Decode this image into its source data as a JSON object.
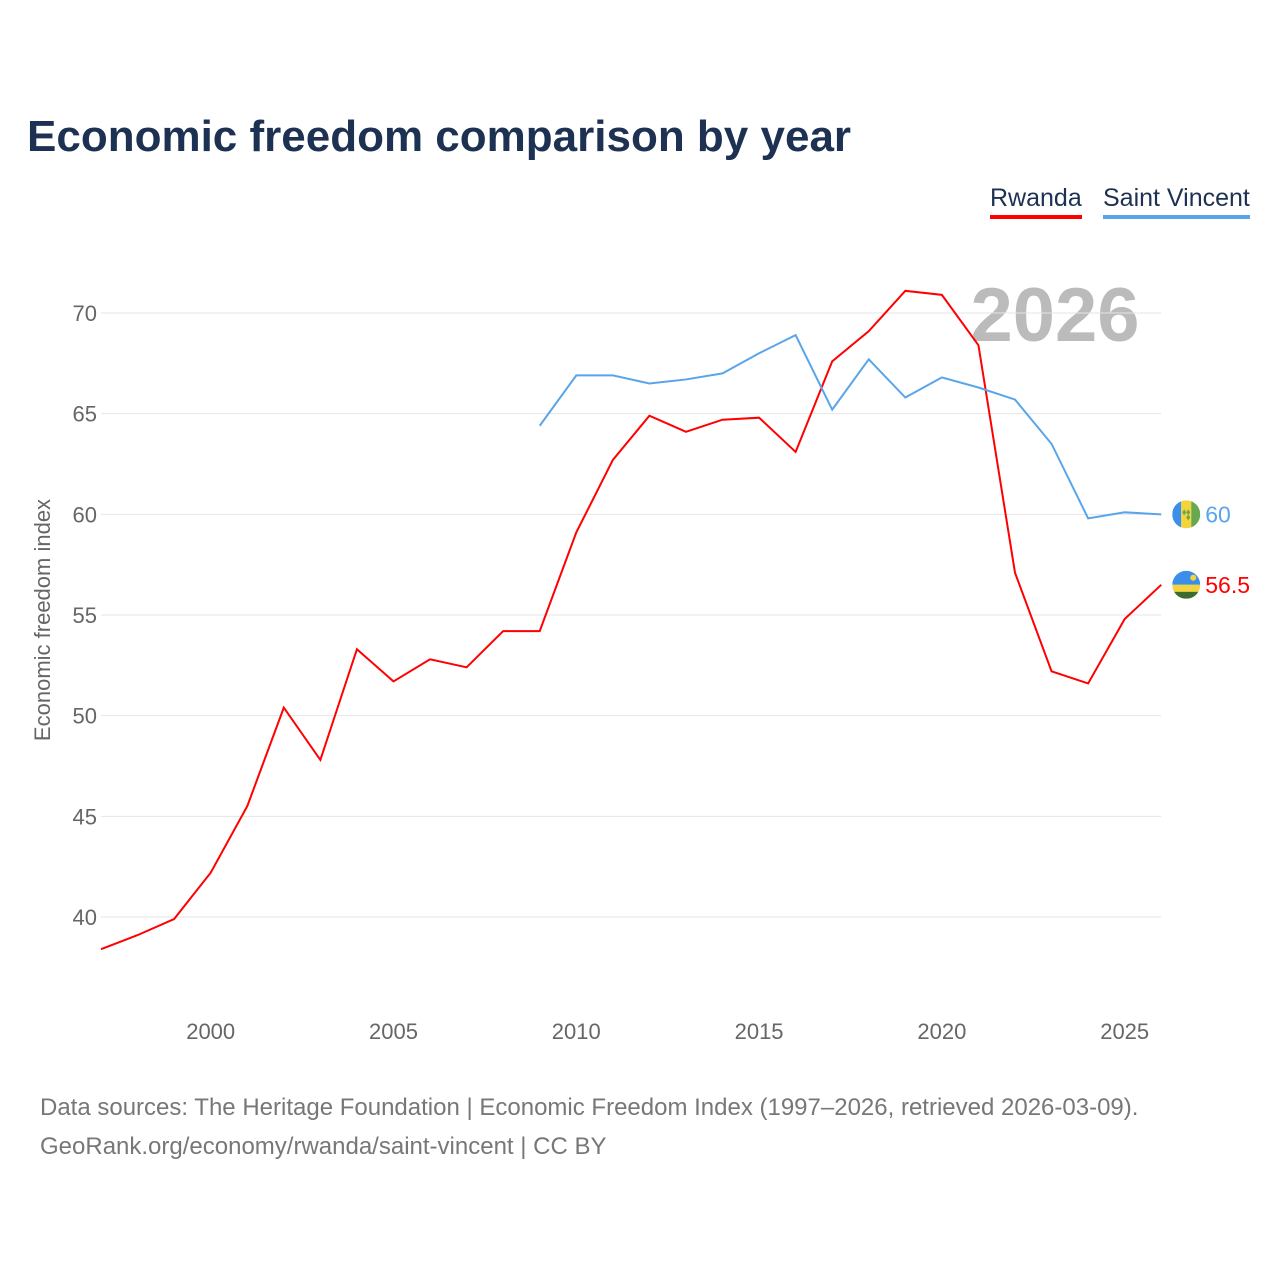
{
  "title": "Economic freedom comparison by year",
  "legend": {
    "rwanda": "Rwanda",
    "saint_vincent": "Saint Vincent"
  },
  "year_watermark": "2026",
  "footer": {
    "line1": "Data sources: The Heritage Foundation | Economic Freedom Index (1997–2026, retrieved 2026-03-09).",
    "line2": "GeoRank.org/economy/rwanda/saint-vincent | CC BY"
  },
  "chart_data": {
    "type": "line",
    "title": "Economic freedom comparison by year",
    "xlabel": "",
    "ylabel": "Economic freedom index",
    "xlim": [
      1997,
      2026
    ],
    "ylim": [
      35,
      72
    ],
    "xticks": [
      2000,
      2005,
      2010,
      2015,
      2020,
      2025
    ],
    "yticks": [
      40,
      45,
      50,
      55,
      60,
      65,
      70
    ],
    "grid": true,
    "legend_position": "top-right",
    "series": [
      {
        "name": "Rwanda",
        "color": "#ff0000",
        "end_label": "56.5",
        "x": [
          1997,
          1998,
          1999,
          2000,
          2001,
          2002,
          2003,
          2004,
          2005,
          2006,
          2007,
          2008,
          2009,
          2010,
          2011,
          2012,
          2013,
          2014,
          2015,
          2016,
          2017,
          2018,
          2019,
          2020,
          2021,
          2022,
          2023,
          2024,
          2025,
          2026
        ],
        "values": [
          38.4,
          39.1,
          39.9,
          42.2,
          45.5,
          50.4,
          47.8,
          53.3,
          51.7,
          52.8,
          52.4,
          54.2,
          54.2,
          59.1,
          62.7,
          64.9,
          64.1,
          64.7,
          64.8,
          63.1,
          67.6,
          69.1,
          71.1,
          70.9,
          68.4,
          57.1,
          52.2,
          51.6,
          54.8,
          56.5
        ]
      },
      {
        "name": "Saint Vincent",
        "color": "#5aa5ea",
        "end_label": "60",
        "x": [
          2009,
          2010,
          2011,
          2012,
          2013,
          2014,
          2015,
          2016,
          2017,
          2018,
          2019,
          2020,
          2021,
          2022,
          2023,
          2024,
          2025,
          2026
        ],
        "values": [
          64.4,
          66.9,
          66.9,
          66.5,
          66.7,
          67.0,
          68.0,
          68.9,
          65.2,
          67.7,
          65.8,
          66.8,
          66.3,
          65.7,
          63.5,
          59.8,
          60.1,
          60.0
        ]
      }
    ]
  }
}
